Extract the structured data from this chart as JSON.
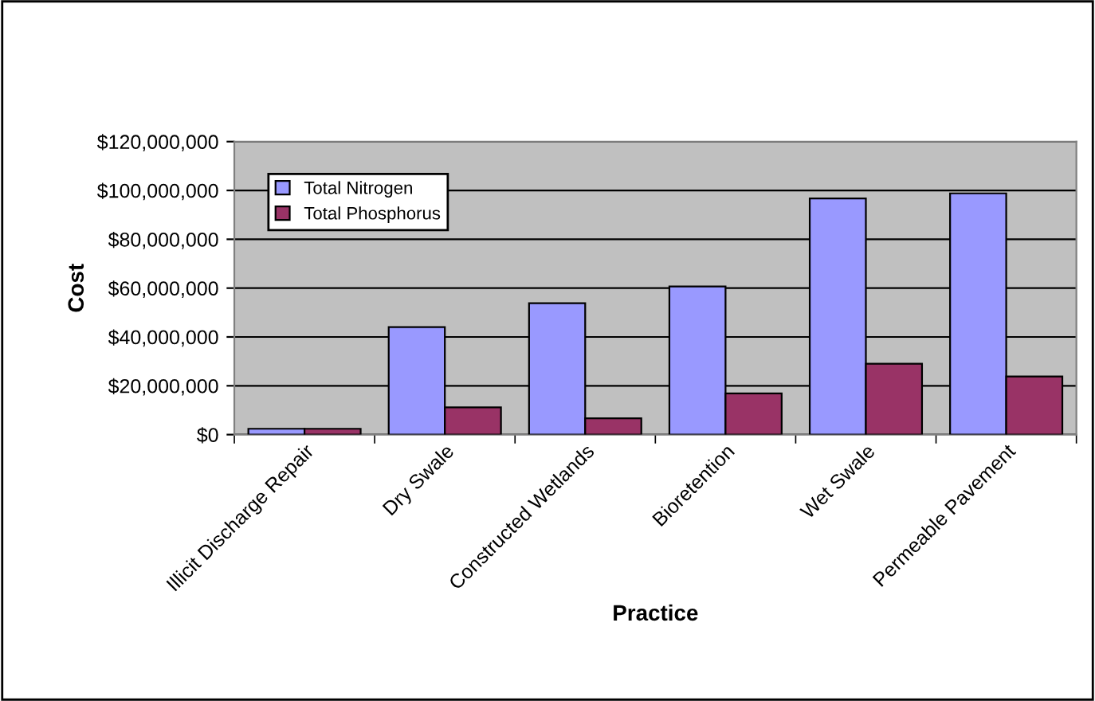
{
  "chart_data": {
    "type": "bar",
    "xlabel": "Practice",
    "ylabel": "Cost",
    "categories": [
      "Illicit Discharge Repair",
      "Dry Swale",
      "Constructed Wetlands",
      "Bioretention",
      "Wet Swale",
      "Permeable Pavement"
    ],
    "series": [
      {
        "name": "Total Nitrogen",
        "color": "#9999ff",
        "values": [
          2400000,
          44000000,
          53800000,
          60700000,
          96700000,
          98800000
        ]
      },
      {
        "name": "Total Phosphorus",
        "color": "#993366",
        "values": [
          2400000,
          11200000,
          6700000,
          16900000,
          29000000,
          23800000
        ]
      }
    ],
    "ylim": [
      0,
      120000000
    ],
    "yticks": [
      {
        "value": 0,
        "label": "$0"
      },
      {
        "value": 20000000,
        "label": "$20,000,000"
      },
      {
        "value": 40000000,
        "label": "$40,000,000"
      },
      {
        "value": 60000000,
        "label": "$60,000,000"
      },
      {
        "value": 80000000,
        "label": "$80,000,000"
      },
      {
        "value": 100000000,
        "label": "$100,000,000"
      },
      {
        "value": 120000000,
        "label": "$120,000,000"
      }
    ],
    "grid": "y",
    "legend": "top left"
  }
}
